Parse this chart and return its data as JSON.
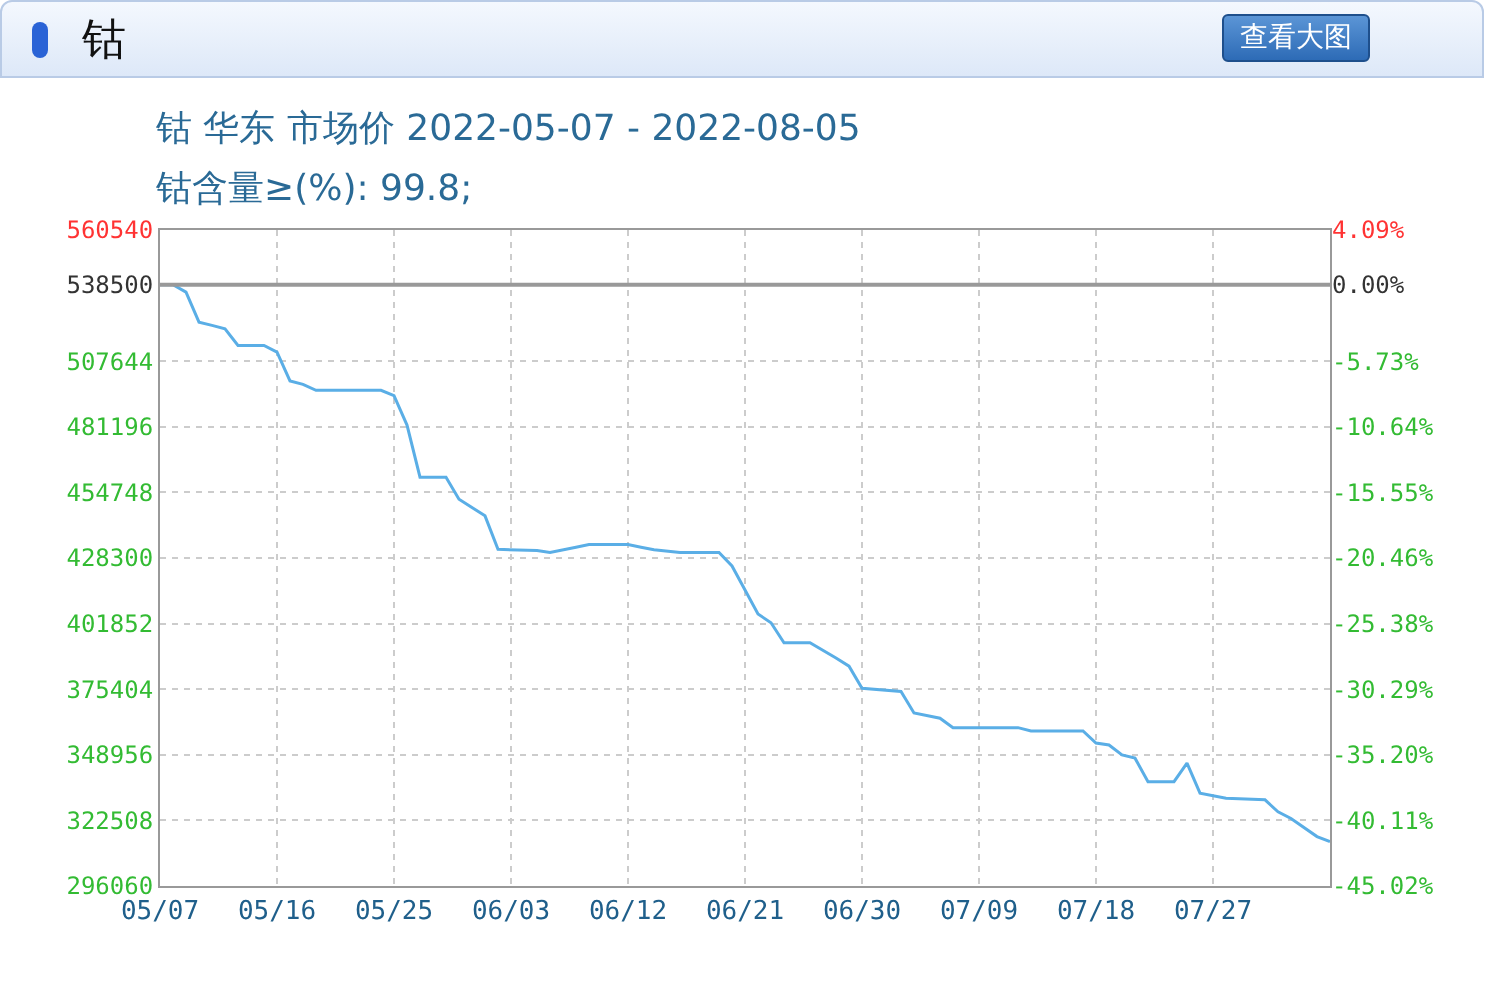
{
  "chart_data": {
    "type": "line",
    "title": "钴 华东 市场价 2022-05-07 - 2022-08-05",
    "subtitle": "钴含量≥(%): 99.8;",
    "annotations": [
      "钴",
      "查看大图"
    ],
    "x": [
      "2022-05-07",
      "2022-05-08",
      "2022-05-09",
      "2022-05-10",
      "2022-05-11",
      "2022-05-12",
      "2022-05-13",
      "2022-05-15",
      "2022-05-16",
      "2022-05-17",
      "2022-05-18",
      "2022-05-19",
      "2022-05-24",
      "2022-05-25",
      "2022-05-26",
      "2022-05-27",
      "2022-05-29",
      "2022-05-30",
      "2022-06-01",
      "2022-06-02",
      "2022-06-05",
      "2022-06-06",
      "2022-06-08",
      "2022-06-09",
      "2022-06-12",
      "2022-06-13",
      "2022-06-14",
      "2022-06-16",
      "2022-06-19",
      "2022-06-20",
      "2022-06-22",
      "2022-06-23",
      "2022-06-24",
      "2022-06-26",
      "2022-06-28",
      "2022-06-29",
      "2022-06-30",
      "2022-07-03",
      "2022-07-04",
      "2022-07-06",
      "2022-07-07",
      "2022-07-12",
      "2022-07-13",
      "2022-07-17",
      "2022-07-18",
      "2022-07-19",
      "2022-07-20",
      "2022-07-21",
      "2022-07-22",
      "2022-07-24",
      "2022-07-25",
      "2022-07-26",
      "2022-07-28",
      "2022-07-31",
      "2022-08-01",
      "2022-08-02",
      "2022-08-04",
      "2022-08-05"
    ],
    "series": [
      {
        "color": "#5aaee6",
        "values": [
          538500,
          538500,
          535500,
          523400,
          522100,
          520700,
          514000,
          514000,
          511300,
          499700,
          498300,
          495900,
          495900,
          493800,
          481900,
          460900,
          460900,
          452000,
          445300,
          431800,
          431300,
          430500,
          432600,
          433700,
          433700,
          432600,
          431600,
          430500,
          430500,
          425100,
          405700,
          402200,
          394100,
          394100,
          388000,
          384700,
          375800,
          374500,
          365800,
          363700,
          359900,
          359900,
          358600,
          358600,
          353700,
          352900,
          348900,
          347600,
          338100,
          338100,
          345600,
          333500,
          331400,
          330800,
          326000,
          323300,
          316000,
          314000
        ]
      }
    ],
    "xlim": [
      "2022-05-07",
      "2022-08-05"
    ],
    "xticks": [
      {
        "value": "2022-05-07",
        "label": "05/07"
      },
      {
        "value": "2022-05-16",
        "label": "05/16"
      },
      {
        "value": "2022-05-25",
        "label": "05/25"
      },
      {
        "value": "2022-06-03",
        "label": "06/03"
      },
      {
        "value": "2022-06-12",
        "label": "06/12"
      },
      {
        "value": "2022-06-21",
        "label": "06/21"
      },
      {
        "value": "2022-06-30",
        "label": "06/30"
      },
      {
        "value": "2022-07-09",
        "label": "07/09"
      },
      {
        "value": "2022-07-18",
        "label": "07/18"
      },
      {
        "value": "2022-07-27",
        "label": "07/27"
      }
    ],
    "ylim": [
      296060,
      560540
    ],
    "yticks": [
      296060,
      322508,
      348956,
      375404,
      401852,
      428300,
      454748,
      481196,
      507644,
      538500,
      560540
    ],
    "y2lim": [
      -45.02,
      4.09
    ],
    "y2ticks": [
      {
        "value": -45.02,
        "label": "-45.02%"
      },
      {
        "value": -40.11,
        "label": "-40.11%"
      },
      {
        "value": -35.2,
        "label": "-35.20%"
      },
      {
        "value": -30.29,
        "label": "-30.29%"
      },
      {
        "value": -25.38,
        "label": "-25.38%"
      },
      {
        "value": -20.46,
        "label": "-20.46%"
      },
      {
        "value": -15.55,
        "label": "-15.55%"
      },
      {
        "value": -10.64,
        "label": "-10.64%"
      },
      {
        "value": -5.73,
        "label": "-5.73%"
      },
      {
        "value": 0,
        "label": "0.00%"
      },
      {
        "value": 4.09,
        "label": "4.09%"
      }
    ],
    "ref_lines": [
      {
        "axis": "y",
        "value": 538500,
        "color": "#999999"
      }
    ],
    "grid": true,
    "legend": false,
    "marker": "none",
    "line_style": "solid"
  }
}
